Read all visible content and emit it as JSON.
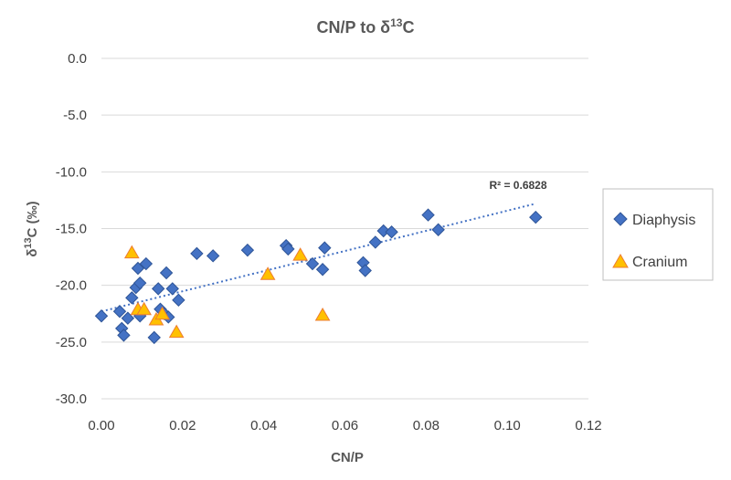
{
  "chart_data": {
    "type": "scatter",
    "title_main": "CN/P to δ",
    "title_sup": "13",
    "title_tail": "C",
    "xlabel": "CN/P",
    "ylabel_main": "δ",
    "ylabel_sup": "13",
    "ylabel_tail": "C (‰)",
    "xlim": [
      0,
      0.12
    ],
    "ylim": [
      -30,
      0
    ],
    "x_ticks": [
      "0.00",
      "0.02",
      "0.04",
      "0.06",
      "0.08",
      "0.10",
      "0.12"
    ],
    "y_ticks": [
      "0.0",
      "-5.0",
      "-10.0",
      "-15.0",
      "-20.0",
      "-25.0",
      "-30.0"
    ],
    "trendline": {
      "label": "R² = 0.6828",
      "x": [
        0.0,
        0.107
      ],
      "y": [
        -22.3,
        -12.8
      ]
    },
    "legend_position": "right",
    "series": [
      {
        "name": "Diaphysis",
        "marker": "diamond",
        "color": "#4472c4",
        "points": [
          [
            0.0,
            -22.7
          ],
          [
            0.0045,
            -22.3
          ],
          [
            0.005,
            -23.8
          ],
          [
            0.0055,
            -24.4
          ],
          [
            0.0065,
            -22.9
          ],
          [
            0.0075,
            -21.1
          ],
          [
            0.0085,
            -20.2
          ],
          [
            0.009,
            -18.5
          ],
          [
            0.0095,
            -19.8
          ],
          [
            0.0095,
            -22.7
          ],
          [
            0.011,
            -18.1
          ],
          [
            0.013,
            -24.6
          ],
          [
            0.014,
            -20.3
          ],
          [
            0.0145,
            -22.1
          ],
          [
            0.0155,
            -22.5
          ],
          [
            0.016,
            -18.9
          ],
          [
            0.0165,
            -22.8
          ],
          [
            0.0175,
            -20.3
          ],
          [
            0.019,
            -21.3
          ],
          [
            0.0235,
            -17.2
          ],
          [
            0.0275,
            -17.4
          ],
          [
            0.036,
            -16.9
          ],
          [
            0.0455,
            -16.5
          ],
          [
            0.046,
            -16.8
          ],
          [
            0.052,
            -18.1
          ],
          [
            0.0545,
            -18.6
          ],
          [
            0.055,
            -16.7
          ],
          [
            0.0645,
            -18.0
          ],
          [
            0.065,
            -18.7
          ],
          [
            0.0675,
            -16.2
          ],
          [
            0.0695,
            -15.2
          ],
          [
            0.0715,
            -15.3
          ],
          [
            0.0805,
            -13.8
          ],
          [
            0.083,
            -15.1
          ],
          [
            0.107,
            -14.0
          ]
        ]
      },
      {
        "name": "Cranium",
        "marker": "triangle",
        "color": "#ffc000",
        "points": [
          [
            0.0075,
            -17.1
          ],
          [
            0.009,
            -22.1
          ],
          [
            0.0105,
            -22.1
          ],
          [
            0.0135,
            -23.0
          ],
          [
            0.015,
            -22.5
          ],
          [
            0.0185,
            -24.1
          ],
          [
            0.041,
            -19.0
          ],
          [
            0.049,
            -17.3
          ],
          [
            0.0545,
            -22.6
          ]
        ]
      }
    ]
  }
}
